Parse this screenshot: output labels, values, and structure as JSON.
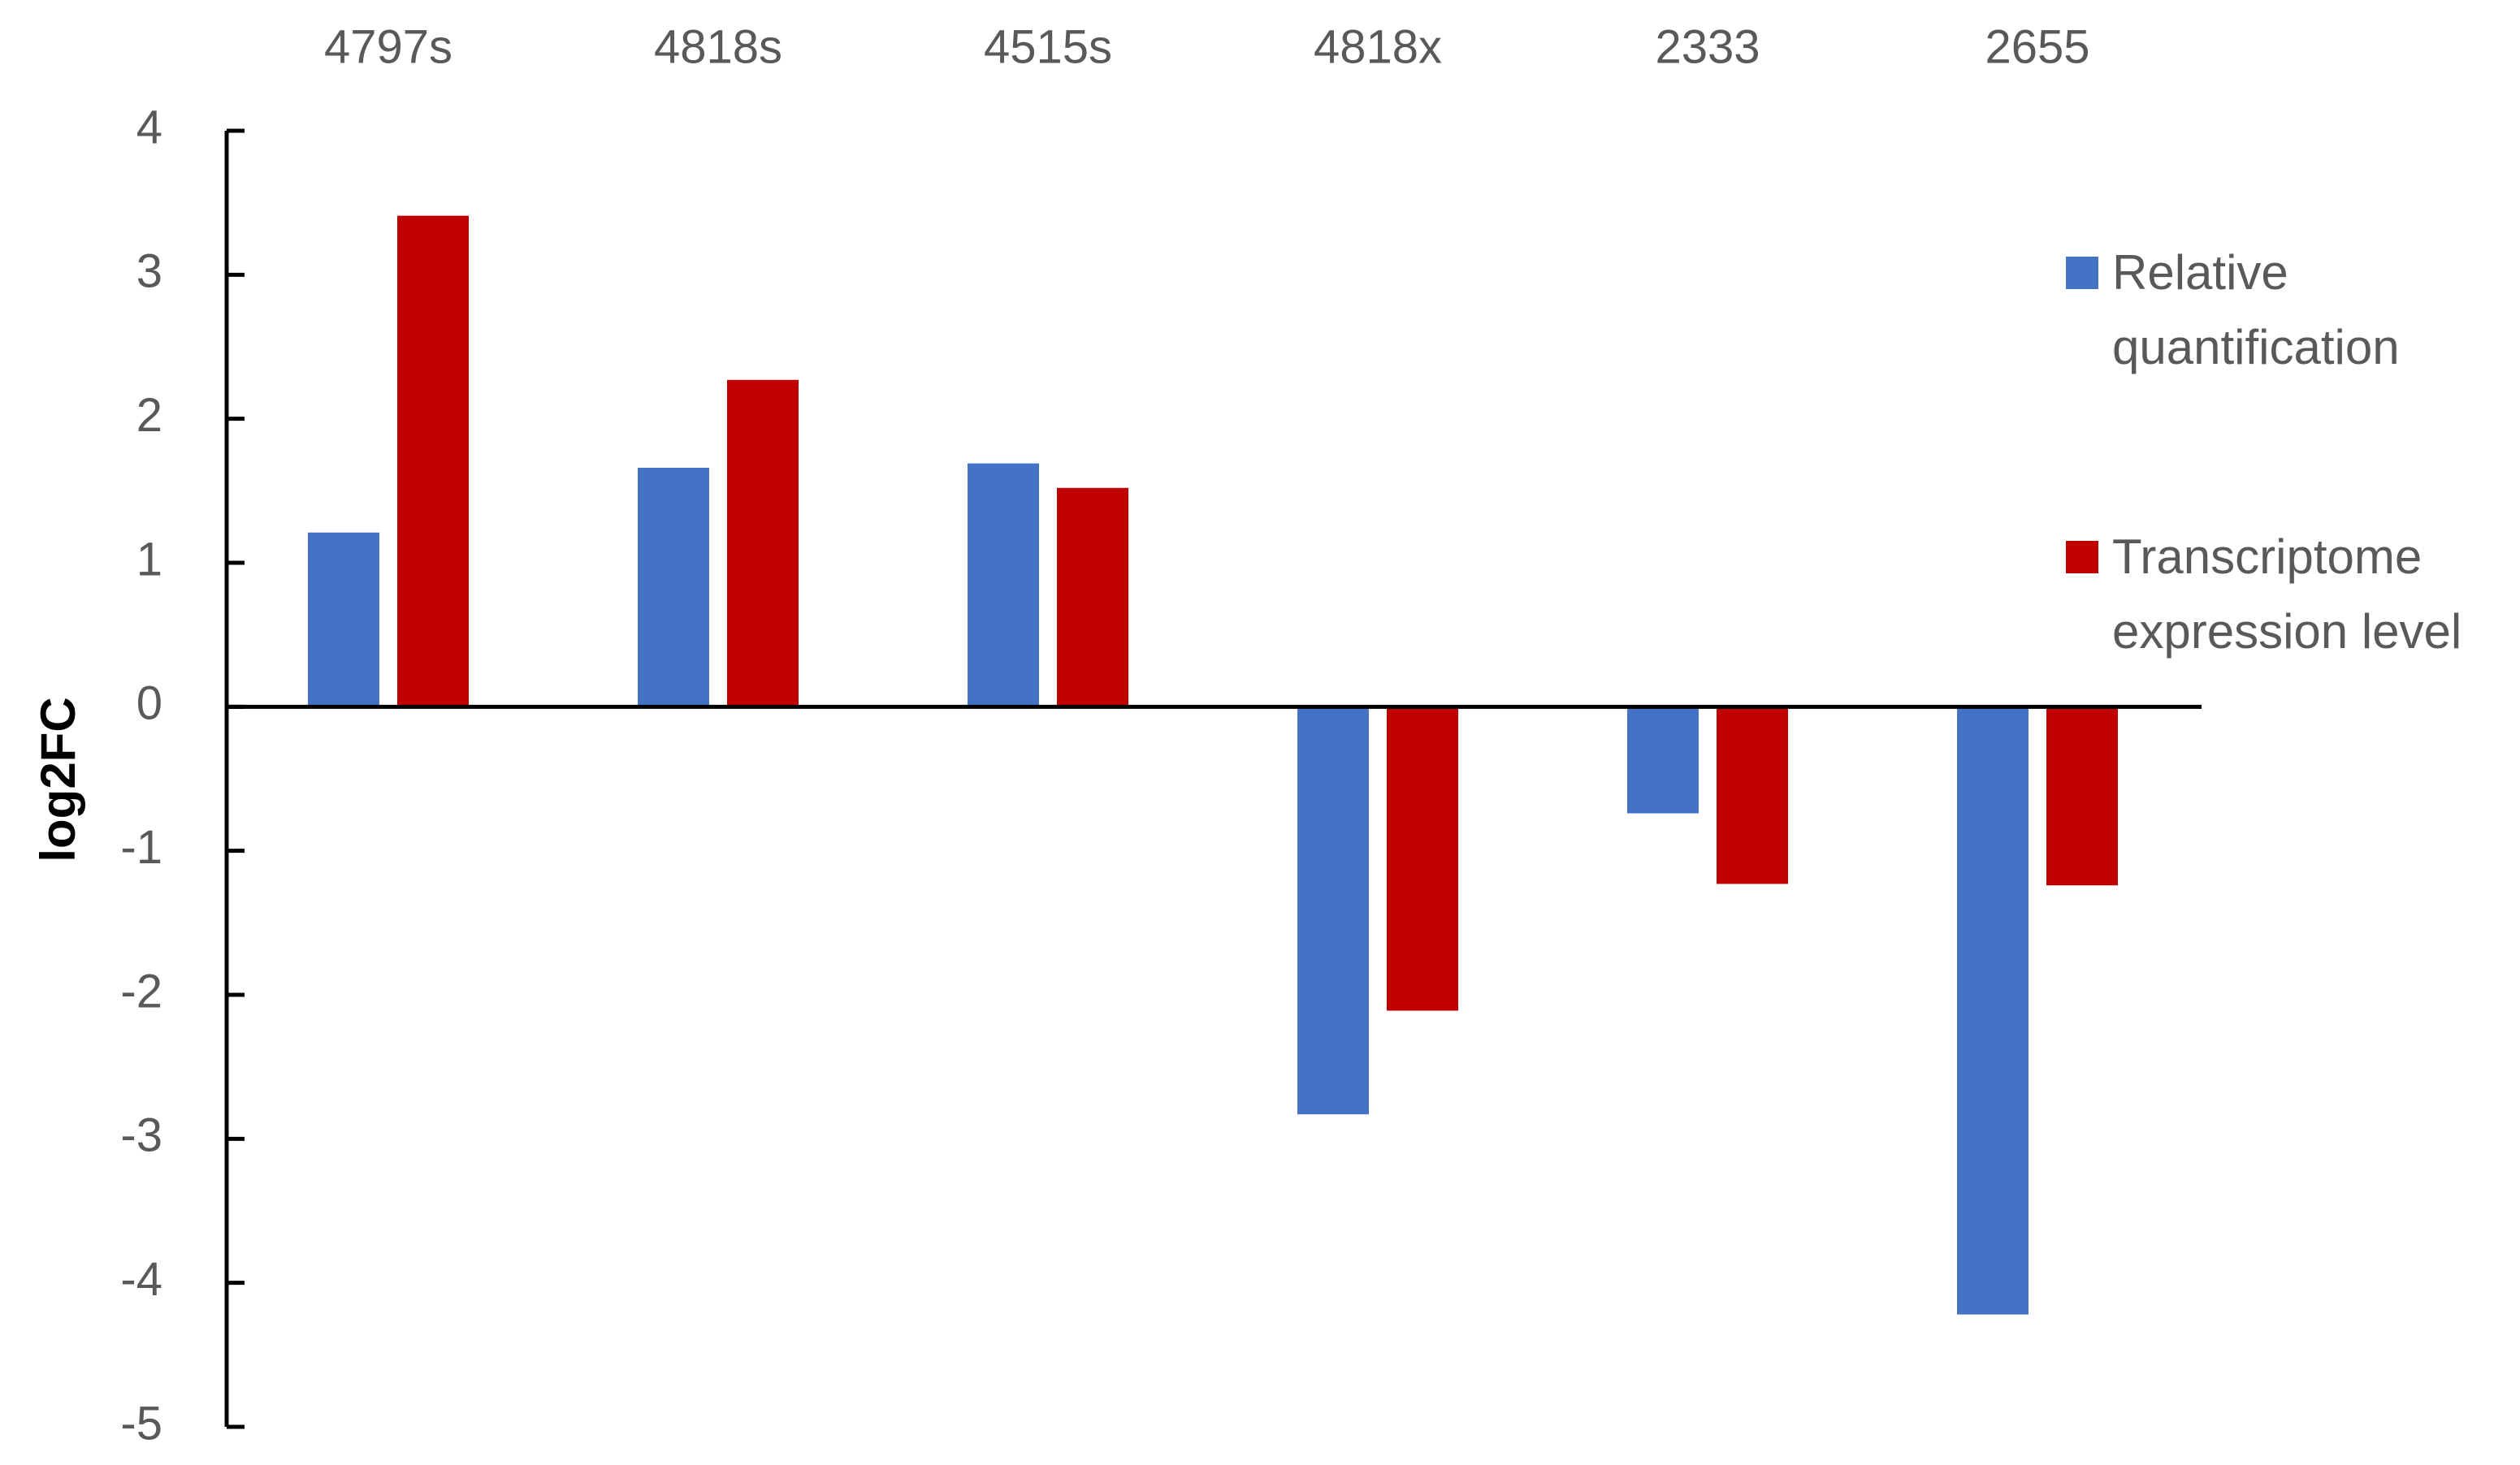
{
  "chart_data": {
    "type": "bar",
    "y_label": "log2FC",
    "categories": [
      "4797s",
      "4818s",
      "4515s",
      "4818x",
      "2333",
      "2655"
    ],
    "series": [
      {
        "name": "Relative quantification",
        "color": "#4472c4",
        "values": [
          1.21,
          1.66,
          1.69,
          -2.83,
          -0.74,
          -4.22
        ]
      },
      {
        "name": "Transcriptome expression level",
        "color": "#c00000",
        "values": [
          3.41,
          2.27,
          1.52,
          -2.11,
          -1.23,
          -1.24
        ]
      }
    ],
    "ylim": [
      -5,
      4
    ],
    "yticks": [
      -5,
      -4,
      -3,
      -2,
      -1,
      0,
      1,
      2,
      3,
      4
    ],
    "legend": "right"
  }
}
